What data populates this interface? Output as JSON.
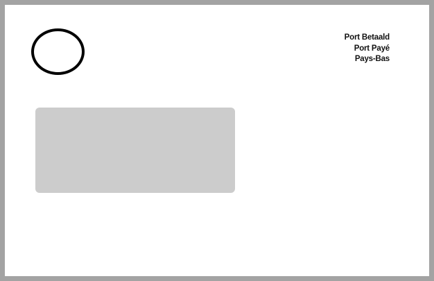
{
  "envelope": {
    "border_color": "#a3a3a3",
    "background_color": "#ffffff"
  },
  "logo": {
    "shape": "oval",
    "stroke_color": "#000000"
  },
  "postage": {
    "lines": [
      "Port Betaald",
      "Port Payé",
      "Pays-Bas"
    ]
  },
  "address_window": {
    "fill_color": "#cccccc"
  }
}
